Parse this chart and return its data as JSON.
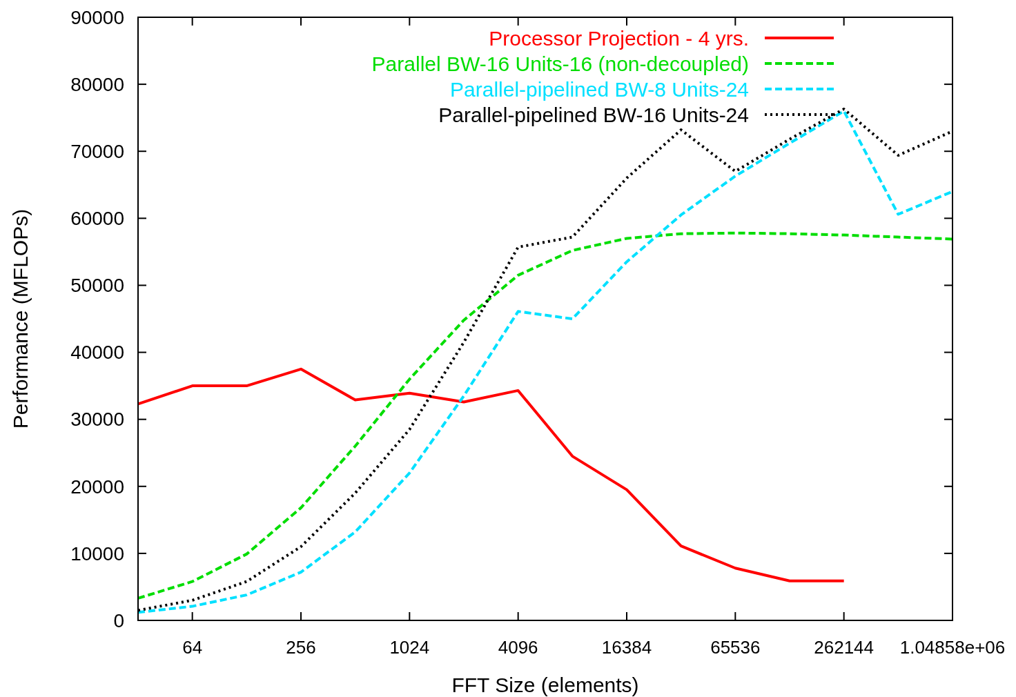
{
  "chart_data": {
    "type": "line",
    "xlabel": "FFT Size (elements)",
    "ylabel": "Performance (MFLOPs)",
    "log": "x",
    "xlim": [
      32,
      1048576
    ],
    "xticks": [
      64,
      256,
      1024,
      4096,
      16384,
      65536,
      262144,
      {
        "value": 1048576,
        "label": "1.04858e+06"
      }
    ],
    "ylim": [
      0,
      90000
    ],
    "yticks": [
      0,
      10000,
      20000,
      30000,
      40000,
      50000,
      60000,
      70000,
      80000,
      90000
    ],
    "grid": false,
    "legend": "top right",
    "x": [
      32,
      64,
      128,
      256,
      512,
      1024,
      2048,
      4096,
      8192,
      16384,
      32768,
      65536,
      131072,
      262144,
      524288,
      1048576
    ],
    "series": [
      {
        "name": "Processor Projection - 4 yrs.",
        "color": "#ff0000",
        "line_style": "solid",
        "values": [
          32300,
          35000,
          35000,
          37500,
          32900,
          33900,
          32600,
          34300,
          24500,
          19500,
          11100,
          7800,
          5900,
          5900,
          null,
          null
        ]
      },
      {
        "name": "Parallel BW-16 Units-16 (non-decoupled)",
        "color": "#00dd00",
        "line_style": "dashed",
        "values": [
          3300,
          5800,
          9900,
          16800,
          26000,
          36000,
          44800,
          51500,
          55200,
          57000,
          57700,
          57800,
          57700,
          57500,
          57200,
          56900
        ]
      },
      {
        "name": "Parallel-pipelined BW-8 Units-24",
        "color": "#00e0ff",
        "line_style": "dashed",
        "values": [
          1200,
          2100,
          3800,
          7200,
          13200,
          22000,
          33500,
          46100,
          45000,
          53500,
          60500,
          66300,
          71200,
          76000,
          60600,
          64000
        ]
      },
      {
        "name": "Parallel-pipelined BW-16 Units-24",
        "color": "#000000",
        "line_style": "dotted",
        "values": [
          1500,
          3000,
          5800,
          11000,
          19000,
          28500,
          41500,
          55700,
          57200,
          66000,
          73200,
          67000,
          71800,
          76300,
          69400,
          73000
        ]
      }
    ]
  }
}
